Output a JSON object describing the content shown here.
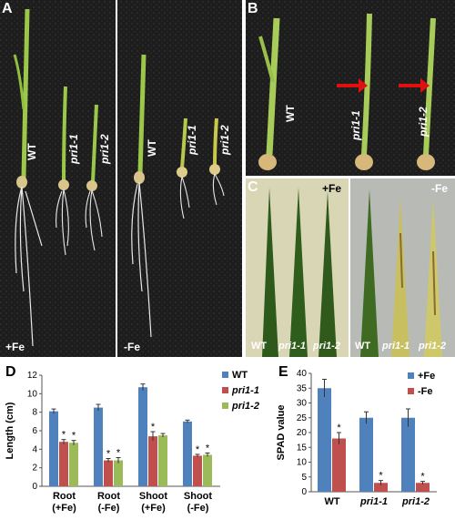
{
  "panels": {
    "A": {
      "letter": "A",
      "left_condition": "+Fe",
      "right_condition": "-Fe",
      "genotypes": [
        "WT",
        "pri1-1",
        "pri1-2"
      ]
    },
    "B": {
      "letter": "B",
      "genotypes": [
        "WT",
        "pri1-1",
        "pri1-2"
      ]
    },
    "C": {
      "letter": "C",
      "left_condition": "+Fe",
      "right_condition": "-Fe",
      "genotypes_label_left": [
        "WT",
        "pri1-1",
        "pri1-2"
      ],
      "genotypes_label_right": [
        "WT",
        "pri1-1",
        "pri1-2"
      ]
    },
    "D": {
      "letter": "D"
    },
    "E": {
      "letter": "E"
    }
  },
  "colors": {
    "wt": "#4f81bd",
    "pri1_1": "#c0504d",
    "pri1_2": "#9bbb59"
  },
  "chart_data": [
    {
      "panel": "D",
      "type": "bar",
      "ylabel": "Length (cm)",
      "ylim": [
        0,
        12
      ],
      "yticks": [
        0,
        2,
        4,
        6,
        8,
        10,
        12
      ],
      "categories": [
        "Root (+Fe)",
        "Root (-Fe)",
        "Shoot (+Fe)",
        "Shoot (-Fe)"
      ],
      "category_lines": [
        [
          "Root",
          "(+Fe)"
        ],
        [
          "Root",
          "(-Fe)"
        ],
        [
          "Shoot",
          "(+Fe)"
        ],
        [
          "Shoot",
          "(-Fe)"
        ]
      ],
      "legend_position": "top-right",
      "series": [
        {
          "name": "WT",
          "color": "#4f81bd",
          "values": [
            8.1,
            8.5,
            10.7,
            7.0
          ],
          "errors": [
            0.25,
            0.35,
            0.35,
            0.15
          ],
          "stars": [
            false,
            false,
            false,
            false
          ]
        },
        {
          "name": "pri1-1",
          "color": "#c0504d",
          "values": [
            4.8,
            2.8,
            5.4,
            3.3
          ],
          "errors": [
            0.25,
            0.2,
            0.5,
            0.15
          ],
          "stars": [
            true,
            true,
            true,
            true
          ]
        },
        {
          "name": "pri1-2",
          "color": "#9bbb59",
          "values": [
            4.7,
            2.8,
            5.5,
            3.4
          ],
          "errors": [
            0.25,
            0.3,
            0.2,
            0.2
          ],
          "stars": [
            true,
            true,
            false,
            true
          ]
        }
      ],
      "star_symbol": "*"
    },
    {
      "panel": "E",
      "type": "bar",
      "ylabel": "SPAD value",
      "ylim": [
        0,
        40
      ],
      "yticks": [
        0,
        5,
        10,
        15,
        20,
        25,
        30,
        35,
        40
      ],
      "categories": [
        "WT",
        "pri1-1",
        "pri1-2"
      ],
      "legend_position": "top-right",
      "series": [
        {
          "name": "+Fe",
          "color": "#4f81bd",
          "values": [
            35,
            25,
            25
          ],
          "errors": [
            3.0,
            2.0,
            3.0
          ],
          "stars": [
            false,
            false,
            false
          ]
        },
        {
          "name": "-Fe",
          "color": "#c0504d",
          "values": [
            18,
            3,
            3
          ],
          "errors": [
            2.0,
            0.8,
            0.5
          ],
          "stars": [
            true,
            true,
            true
          ]
        }
      ],
      "star_symbol": "*"
    }
  ]
}
